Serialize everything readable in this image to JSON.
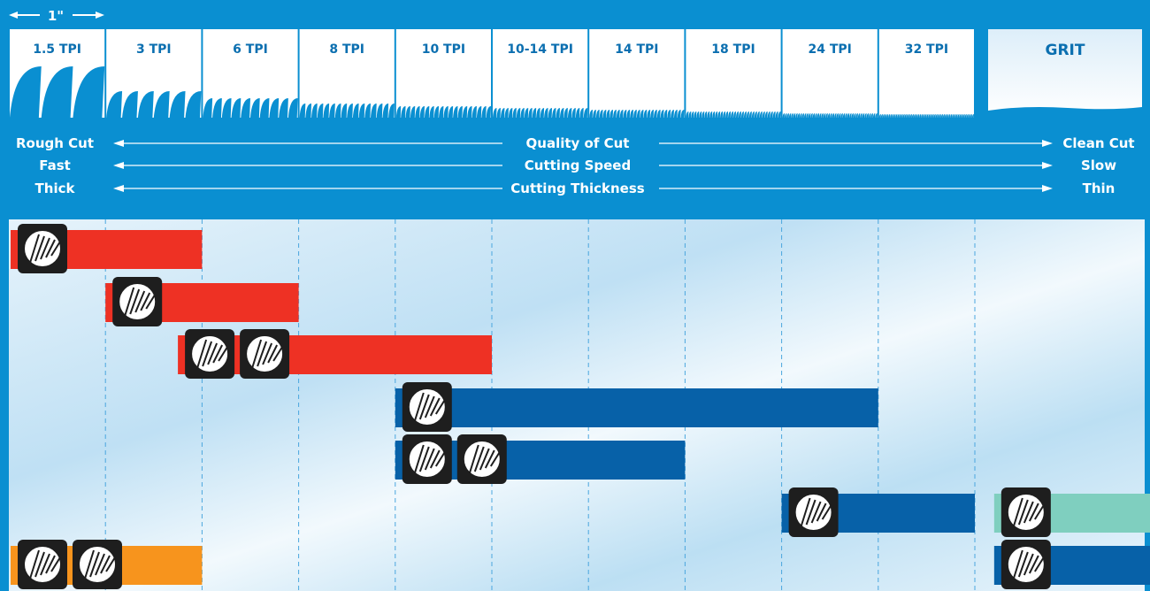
{
  "colors": {
    "frame": "#0a8fd1",
    "band_red": "#ee3124",
    "band_blue": "#0761a8",
    "band_orange": "#f7941d",
    "band_teal": "#7fcfbf",
    "tooth": "#0a8fd1",
    "label_dark": "#0b6fb0",
    "icon_bg": "#1e1e1e"
  },
  "ruler": {
    "label": "1\""
  },
  "chart_data": {
    "type": "range-bar",
    "categories": [
      "1.5 TPI",
      "3 TPI",
      "6 TPI",
      "8 TPI",
      "10 TPI",
      "10-14 TPI",
      "14 TPI",
      "18 TPI",
      "24 TPI",
      "32 TPI"
    ],
    "extra_category": "GRIT",
    "axis_legend": [
      {
        "left": "Rough Cut",
        "center": "Quality of Cut",
        "right": "Clean Cut"
      },
      {
        "left": "Fast",
        "center": "Cutting Speed",
        "right": "Slow"
      },
      {
        "left": "Thick",
        "center": "Cutting Thickness",
        "right": "Thin"
      }
    ],
    "bands": [
      {
        "start": 0,
        "end": 2,
        "color": "band_red",
        "icons": [
          "log-icon"
        ]
      },
      {
        "start": 1,
        "end": 3,
        "color": "band_red",
        "icons": [
          "branch-icon"
        ]
      },
      {
        "start": 1.75,
        "end": 5,
        "color": "band_red",
        "icons": [
          "wood-grain-icon",
          "pipe-icon"
        ]
      },
      {
        "start": 4,
        "end": 9,
        "color": "band_blue",
        "icons": [
          "metal-angle-icon"
        ]
      },
      {
        "start": 4,
        "end": 7,
        "color": "band_blue",
        "icons": [
          "metal-pipe-icon",
          "metal-channel-icon"
        ]
      },
      {
        "start": 8,
        "end": 10,
        "color": "band_blue",
        "icons": [
          "sheet-metal-icon"
        ]
      },
      {
        "start": 10.2,
        "end": 12,
        "color": "band_teal",
        "icons": [
          "tile-icon"
        ]
      },
      {
        "start": 10.2,
        "end": 12,
        "color": "band_blue",
        "icons": [
          "cast-iron-icon"
        ]
      },
      {
        "start": 0,
        "end": 2,
        "color": "band_orange",
        "icons": [
          "drywall-icon",
          "cement-board-icon"
        ]
      }
    ]
  }
}
